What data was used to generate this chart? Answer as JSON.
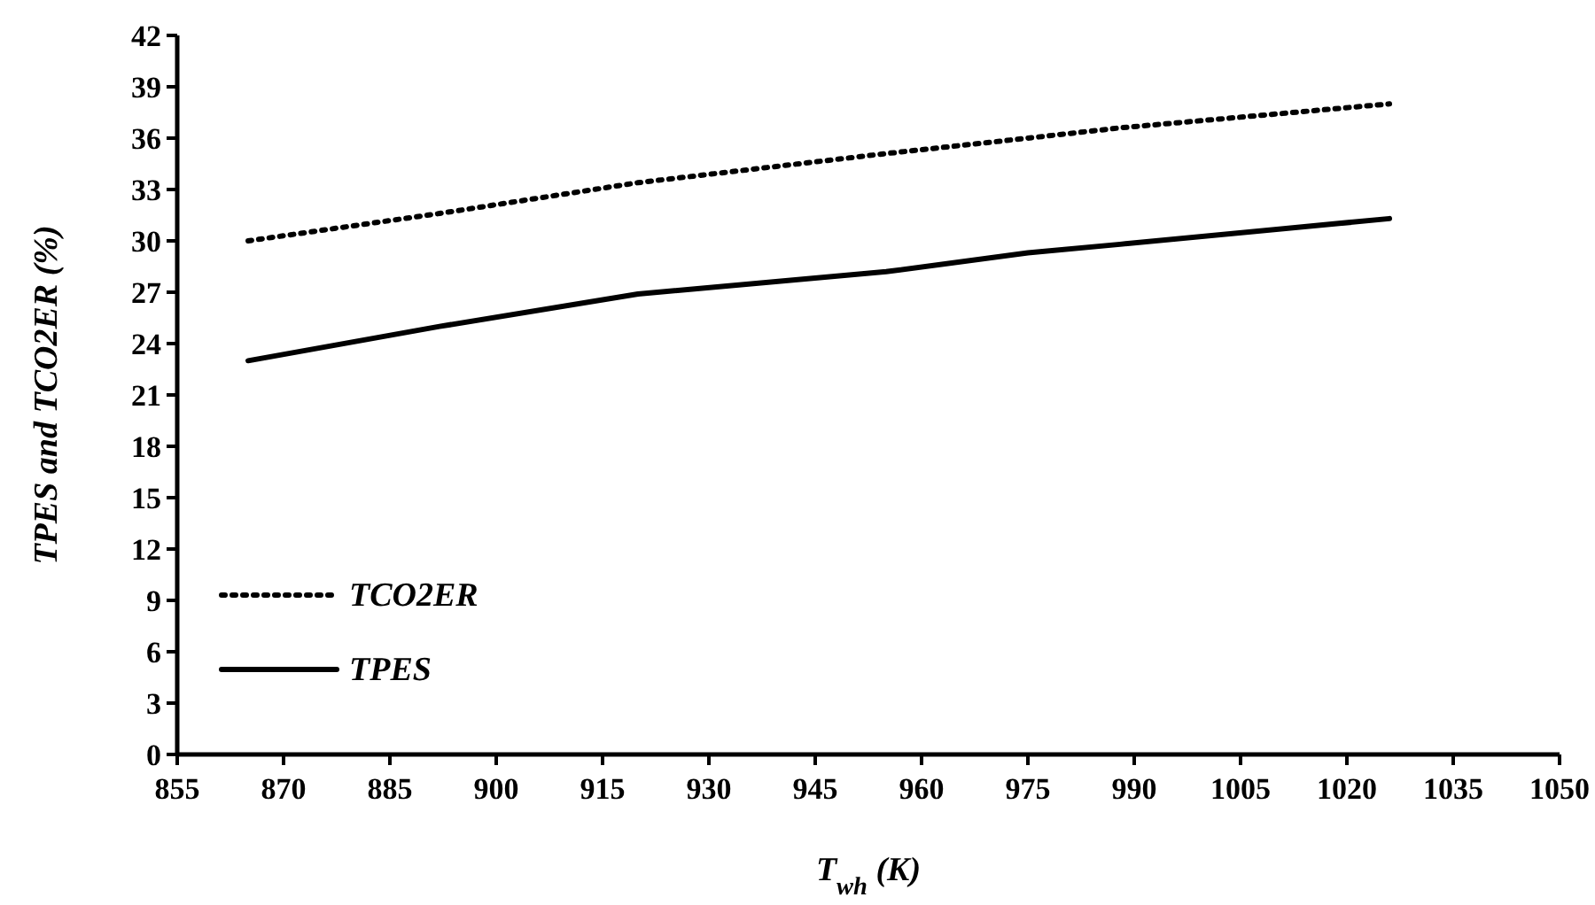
{
  "chart_data": {
    "type": "line",
    "xlabel": "T$_{wh}$ (K)",
    "ylabel": "TPES and TCO2ER (%)",
    "x": [
      865,
      892,
      920,
      955,
      975,
      988,
      1026
    ],
    "xlim": [
      855,
      1050
    ],
    "xticks": [
      855,
      870,
      885,
      900,
      915,
      930,
      945,
      960,
      975,
      990,
      1005,
      1020,
      1035,
      1050
    ],
    "ylim": [
      0,
      42
    ],
    "yticks": [
      0,
      3,
      6,
      9,
      12,
      15,
      18,
      21,
      24,
      27,
      30,
      33,
      36,
      39,
      42
    ],
    "grid": false,
    "legend": "bottom left",
    "marker": "none",
    "series": [
      {
        "name": "TCO2ER",
        "color": "#000000",
        "line_style": "dotted",
        "values": [
          30.0,
          31.6,
          33.4,
          35.1,
          36.0,
          36.6,
          38.0
        ]
      },
      {
        "name": "TPES",
        "color": "#000000",
        "line_style": "solid",
        "values": [
          23.0,
          25.0,
          26.9,
          28.2,
          29.3,
          29.8,
          31.3
        ]
      }
    ]
  }
}
